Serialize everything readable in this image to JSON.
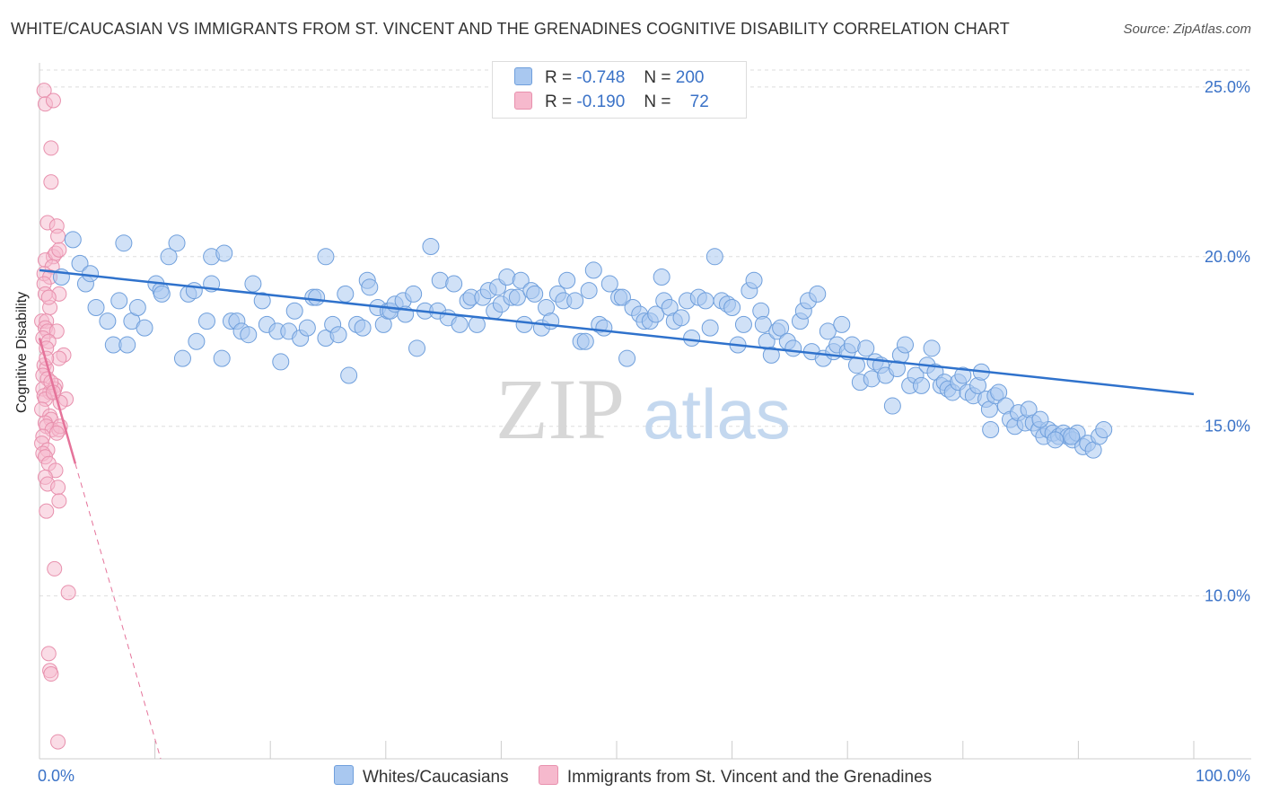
{
  "title": "WHITE/CAUCASIAN VS IMMIGRANTS FROM ST. VINCENT AND THE GRENADINES COGNITIVE DISABILITY CORRELATION CHART",
  "source": "Source: ZipAtlas.com",
  "watermark": {
    "zip": "ZIP",
    "atlas": "atlas"
  },
  "stats": {
    "r_label": "R =",
    "n_label": "N =",
    "blue": {
      "r": "-0.748",
      "n": "200"
    },
    "pink": {
      "r": "-0.190",
      "n": "72"
    }
  },
  "colors": {
    "blue_fill": "#a9c8f0",
    "blue_stroke": "#6f9fdc",
    "blue_line": "#2f72cc",
    "pink_fill": "#f6b9cd",
    "pink_stroke": "#e890ad",
    "pink_line": "#e5739a",
    "axis_text": "#3a72c7",
    "grid": "#dddddd"
  },
  "chart_data": {
    "type": "scatter",
    "title": "WHITE/CAUCASIAN VS IMMIGRANTS FROM ST. VINCENT AND THE GRENADINES COGNITIVE DISABILITY CORRELATION CHART",
    "xlabel": "",
    "ylabel": "Cognitive Disability",
    "xlim": [
      0,
      100
    ],
    "ylim": [
      5.2,
      25.5
    ],
    "x_tick_labels": [
      "0.0%",
      "100.0%"
    ],
    "y_ticks": [
      10,
      15,
      20,
      25
    ],
    "y_tick_labels": [
      "10.0%",
      "15.0%",
      "20.0%",
      "25.0%"
    ],
    "grid": true,
    "legend_position": "bottom-center",
    "series": [
      {
        "name": "Whites/Caucasians",
        "color": "#a9c8f0",
        "trend": {
          "x": [
            0,
            100
          ],
          "y": [
            19.6,
            15.95
          ]
        },
        "points": [
          [
            1.9,
            19.4
          ],
          [
            2.9,
            20.5
          ],
          [
            3.5,
            19.8
          ],
          [
            4.0,
            19.2
          ],
          [
            4.4,
            19.5
          ],
          [
            4.9,
            18.5
          ],
          [
            5.9,
            18.1
          ],
          [
            6.4,
            17.4
          ],
          [
            7.6,
            17.4
          ],
          [
            7.3,
            20.4
          ],
          [
            6.9,
            18.7
          ],
          [
            8.0,
            18.1
          ],
          [
            8.5,
            18.5
          ],
          [
            9.1,
            17.9
          ],
          [
            10.1,
            19.2
          ],
          [
            10.5,
            19.0
          ],
          [
            10.6,
            18.9
          ],
          [
            11.2,
            20.0
          ],
          [
            11.9,
            20.4
          ],
          [
            12.4,
            17.0
          ],
          [
            12.9,
            18.9
          ],
          [
            13.4,
            19.0
          ],
          [
            13.6,
            17.5
          ],
          [
            14.5,
            18.1
          ],
          [
            14.9,
            20.0
          ],
          [
            14.9,
            19.2
          ],
          [
            15.8,
            17.0
          ],
          [
            16.0,
            20.1
          ],
          [
            16.6,
            18.1
          ],
          [
            17.1,
            18.1
          ],
          [
            17.5,
            17.8
          ],
          [
            18.1,
            17.7
          ],
          [
            18.5,
            19.2
          ],
          [
            19.3,
            18.7
          ],
          [
            19.7,
            18.0
          ],
          [
            20.6,
            17.8
          ],
          [
            20.9,
            16.9
          ],
          [
            21.6,
            17.8
          ],
          [
            22.1,
            18.4
          ],
          [
            22.6,
            17.6
          ],
          [
            23.2,
            17.9
          ],
          [
            23.7,
            18.8
          ],
          [
            24.0,
            18.8
          ],
          [
            24.8,
            17.6
          ],
          [
            24.8,
            20.0
          ],
          [
            25.4,
            18.0
          ],
          [
            25.9,
            17.7
          ],
          [
            26.5,
            18.9
          ],
          [
            26.8,
            16.5
          ],
          [
            27.5,
            18.0
          ],
          [
            28.0,
            17.9
          ],
          [
            28.4,
            19.3
          ],
          [
            28.6,
            19.1
          ],
          [
            29.3,
            18.5
          ],
          [
            29.8,
            18.0
          ],
          [
            30.2,
            18.4
          ],
          [
            30.4,
            18.4
          ],
          [
            30.8,
            18.6
          ],
          [
            31.5,
            18.7
          ],
          [
            31.7,
            18.3
          ],
          [
            32.4,
            18.9
          ],
          [
            32.7,
            17.3
          ],
          [
            33.4,
            18.4
          ],
          [
            33.9,
            20.3
          ],
          [
            34.5,
            18.4
          ],
          [
            34.7,
            19.3
          ],
          [
            35.4,
            18.2
          ],
          [
            35.9,
            19.2
          ],
          [
            36.4,
            18.0
          ],
          [
            37.1,
            18.7
          ],
          [
            37.4,
            18.8
          ],
          [
            37.9,
            18.0
          ],
          [
            38.4,
            18.8
          ],
          [
            38.9,
            19.0
          ],
          [
            39.4,
            18.4
          ],
          [
            39.7,
            19.1
          ],
          [
            40.0,
            18.6
          ],
          [
            40.5,
            19.4
          ],
          [
            40.9,
            18.8
          ],
          [
            41.4,
            18.8
          ],
          [
            41.7,
            19.3
          ],
          [
            42.0,
            18.0
          ],
          [
            42.6,
            19.0
          ],
          [
            42.9,
            18.9
          ],
          [
            43.5,
            17.9
          ],
          [
            43.9,
            18.5
          ],
          [
            44.3,
            18.1
          ],
          [
            44.9,
            18.9
          ],
          [
            45.4,
            18.7
          ],
          [
            45.7,
            19.3
          ],
          [
            46.4,
            18.7
          ],
          [
            46.9,
            17.5
          ],
          [
            47.3,
            17.5
          ],
          [
            47.6,
            19.0
          ],
          [
            48.0,
            19.6
          ],
          [
            48.5,
            18.0
          ],
          [
            48.9,
            17.9
          ],
          [
            49.4,
            19.2
          ],
          [
            50.2,
            18.8
          ],
          [
            50.5,
            18.8
          ],
          [
            50.9,
            17.0
          ],
          [
            51.4,
            18.5
          ],
          [
            52.0,
            18.3
          ],
          [
            52.4,
            18.1
          ],
          [
            52.9,
            18.1
          ],
          [
            53.4,
            18.3
          ],
          [
            53.9,
            19.4
          ],
          [
            54.1,
            18.7
          ],
          [
            54.6,
            18.5
          ],
          [
            55.0,
            18.1
          ],
          [
            55.6,
            18.2
          ],
          [
            56.1,
            18.7
          ],
          [
            56.5,
            17.6
          ],
          [
            57.1,
            18.8
          ],
          [
            57.7,
            18.7
          ],
          [
            58.1,
            17.9
          ],
          [
            58.5,
            20.0
          ],
          [
            59.1,
            18.7
          ],
          [
            59.6,
            18.6
          ],
          [
            60.0,
            18.5
          ],
          [
            60.5,
            17.4
          ],
          [
            61.0,
            18.0
          ],
          [
            61.5,
            19.0
          ],
          [
            61.9,
            19.3
          ],
          [
            62.5,
            18.4
          ],
          [
            62.7,
            18.0
          ],
          [
            63.0,
            17.5
          ],
          [
            63.4,
            17.1
          ],
          [
            63.9,
            17.8
          ],
          [
            64.2,
            17.9
          ],
          [
            64.8,
            17.5
          ],
          [
            65.3,
            17.3
          ],
          [
            65.9,
            18.1
          ],
          [
            66.2,
            18.4
          ],
          [
            66.6,
            18.7
          ],
          [
            66.9,
            17.2
          ],
          [
            67.4,
            18.9
          ],
          [
            67.9,
            17.0
          ],
          [
            68.3,
            17.8
          ],
          [
            68.8,
            17.2
          ],
          [
            69.1,
            17.4
          ],
          [
            69.5,
            18.0
          ],
          [
            70.0,
            17.2
          ],
          [
            70.4,
            17.4
          ],
          [
            70.8,
            16.8
          ],
          [
            71.1,
            16.3
          ],
          [
            71.6,
            17.3
          ],
          [
            72.1,
            16.4
          ],
          [
            72.4,
            16.9
          ],
          [
            72.9,
            16.8
          ],
          [
            73.3,
            16.5
          ],
          [
            73.9,
            15.6
          ],
          [
            74.3,
            16.7
          ],
          [
            74.6,
            17.1
          ],
          [
            75.0,
            17.4
          ],
          [
            75.4,
            16.2
          ],
          [
            75.9,
            16.5
          ],
          [
            76.4,
            16.2
          ],
          [
            76.9,
            16.8
          ],
          [
            77.3,
            17.3
          ],
          [
            77.6,
            16.6
          ],
          [
            78.1,
            16.2
          ],
          [
            78.4,
            16.3
          ],
          [
            78.7,
            16.1
          ],
          [
            79.1,
            16.0
          ],
          [
            79.6,
            16.3
          ],
          [
            80.0,
            16.5
          ],
          [
            80.4,
            16.0
          ],
          [
            80.9,
            15.9
          ],
          [
            81.3,
            16.2
          ],
          [
            81.6,
            16.6
          ],
          [
            82.0,
            15.8
          ],
          [
            82.3,
            15.5
          ],
          [
            82.8,
            15.9
          ],
          [
            83.1,
            16.0
          ],
          [
            83.7,
            15.6
          ],
          [
            84.1,
            15.2
          ],
          [
            84.5,
            15.0
          ],
          [
            84.8,
            15.4
          ],
          [
            85.4,
            15.1
          ],
          [
            85.7,
            15.5
          ],
          [
            86.1,
            15.1
          ],
          [
            86.6,
            14.9
          ],
          [
            87.0,
            14.7
          ],
          [
            87.4,
            14.9
          ],
          [
            87.8,
            14.8
          ],
          [
            88.3,
            14.7
          ],
          [
            88.7,
            14.8
          ],
          [
            89.1,
            14.7
          ],
          [
            89.5,
            14.6
          ],
          [
            89.9,
            14.8
          ],
          [
            90.4,
            14.4
          ],
          [
            90.8,
            14.5
          ],
          [
            91.3,
            14.3
          ],
          [
            91.8,
            14.7
          ],
          [
            92.2,
            14.9
          ],
          [
            82.4,
            14.9
          ],
          [
            86.7,
            15.2
          ],
          [
            88.0,
            14.6
          ],
          [
            89.4,
            14.7
          ]
        ]
      },
      {
        "name": "Immigrants from St. Vincent and the Grenadines",
        "color": "#f6b9cd",
        "trend": {
          "x": [
            0,
            3.1
          ],
          "y": [
            17.6,
            13.9
          ]
        },
        "trend_dashed": {
          "x": [
            3.1,
            10.5
          ],
          "y": [
            13.9,
            5.2
          ]
        },
        "points": [
          [
            0.4,
            24.9
          ],
          [
            0.5,
            24.5
          ],
          [
            1.2,
            24.6
          ],
          [
            1.0,
            23.2
          ],
          [
            1.0,
            22.2
          ],
          [
            0.7,
            21.0
          ],
          [
            1.5,
            20.9
          ],
          [
            1.6,
            20.6
          ],
          [
            1.2,
            20.0
          ],
          [
            0.5,
            19.9
          ],
          [
            1.4,
            20.1
          ],
          [
            1.7,
            20.2
          ],
          [
            1.1,
            19.7
          ],
          [
            0.4,
            19.5
          ],
          [
            0.9,
            19.4
          ],
          [
            0.4,
            19.2
          ],
          [
            0.5,
            18.9
          ],
          [
            1.7,
            18.9
          ],
          [
            0.9,
            18.5
          ],
          [
            0.2,
            18.1
          ],
          [
            0.6,
            18.1
          ],
          [
            0.5,
            17.9
          ],
          [
            0.7,
            17.8
          ],
          [
            1.5,
            17.8
          ],
          [
            0.3,
            17.6
          ],
          [
            0.8,
            17.5
          ],
          [
            0.6,
            17.3
          ],
          [
            2.1,
            17.1
          ],
          [
            1.7,
            17.0
          ],
          [
            0.4,
            16.8
          ],
          [
            0.6,
            16.7
          ],
          [
            0.3,
            16.5
          ],
          [
            0.7,
            16.4
          ],
          [
            1.4,
            16.2
          ],
          [
            0.3,
            16.1
          ],
          [
            0.9,
            16.0
          ],
          [
            1.3,
            16.1
          ],
          [
            0.4,
            15.9
          ],
          [
            0.5,
            15.8
          ],
          [
            2.3,
            15.8
          ],
          [
            1.8,
            15.7
          ],
          [
            0.2,
            15.5
          ],
          [
            0.9,
            15.3
          ],
          [
            1.0,
            15.2
          ],
          [
            0.5,
            15.1
          ],
          [
            0.6,
            15.0
          ],
          [
            1.1,
            14.9
          ],
          [
            1.7,
            14.9
          ],
          [
            1.8,
            15.0
          ],
          [
            1.5,
            14.8
          ],
          [
            0.3,
            14.7
          ],
          [
            0.2,
            14.5
          ],
          [
            0.7,
            14.3
          ],
          [
            0.3,
            14.2
          ],
          [
            0.5,
            14.1
          ],
          [
            0.8,
            13.9
          ],
          [
            1.4,
            13.7
          ],
          [
            0.5,
            13.5
          ],
          [
            0.7,
            13.3
          ],
          [
            1.6,
            13.2
          ],
          [
            1.7,
            12.8
          ],
          [
            0.6,
            12.5
          ],
          [
            1.3,
            10.8
          ],
          [
            2.5,
            10.1
          ],
          [
            0.8,
            8.3
          ],
          [
            0.9,
            7.8
          ],
          [
            1.0,
            7.7
          ],
          [
            1.6,
            5.7
          ],
          [
            1.0,
            16.3
          ],
          [
            1.2,
            16.0
          ],
          [
            0.8,
            18.8
          ],
          [
            0.6,
            17.0
          ]
        ]
      }
    ]
  },
  "legend": {
    "blue_label": "Whites/Caucasians",
    "pink_label": "Immigrants from St. Vincent and the Grenadines"
  }
}
